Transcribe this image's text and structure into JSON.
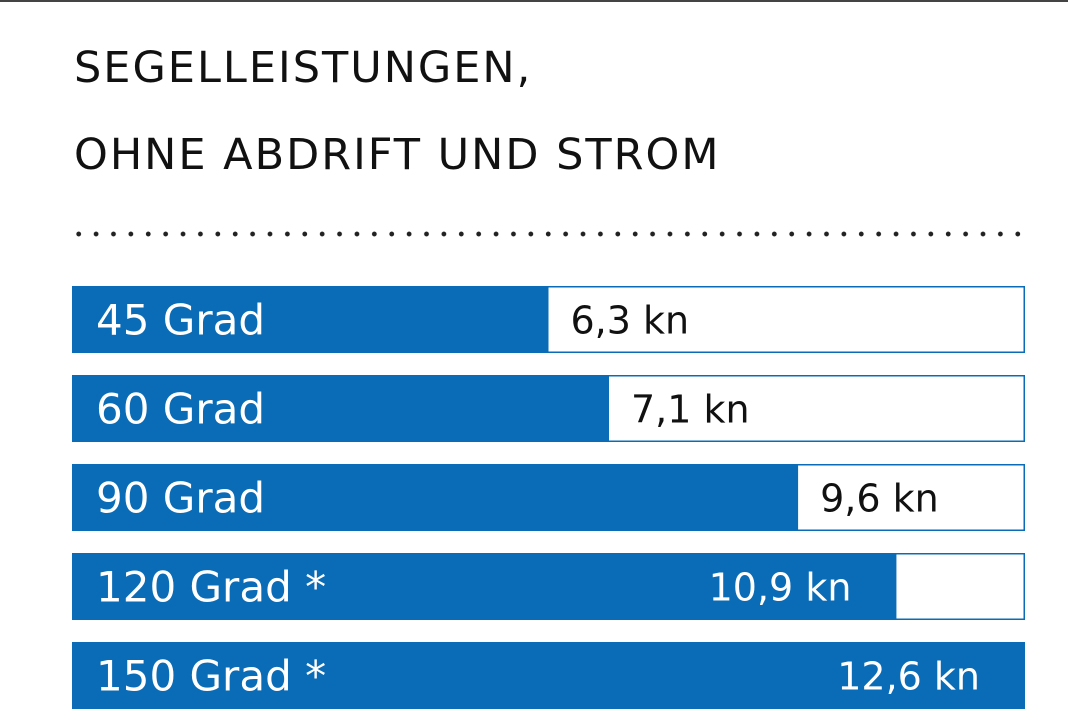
{
  "title_lines": [
    "SEGELLEISTUNGEN,",
    "OHNE ABDRIFT UND STROM"
  ],
  "colors": {
    "bar": "#0a6cb6",
    "bar_outline": "#0a6cb6",
    "value_text_dark": "#111111",
    "value_text_light": "#ffffff"
  },
  "chart_data": {
    "type": "bar",
    "orientation": "horizontal",
    "title": "SEGELLEISTUNGEN, OHNE ABDRIFT UND STROM",
    "categories": [
      "45 Grad",
      "60 Grad",
      "90 Grad",
      "120 Grad *",
      "150 Grad *"
    ],
    "values": [
      6.3,
      7.1,
      9.6,
      10.9,
      12.6
    ],
    "value_labels": [
      "6,3 kn",
      "7,1 kn",
      "9,6 kn",
      "10,9 kn",
      "12,6 kn"
    ],
    "unit": "kn",
    "xlim": [
      0,
      12.6
    ],
    "grid": false,
    "legend": "none"
  }
}
